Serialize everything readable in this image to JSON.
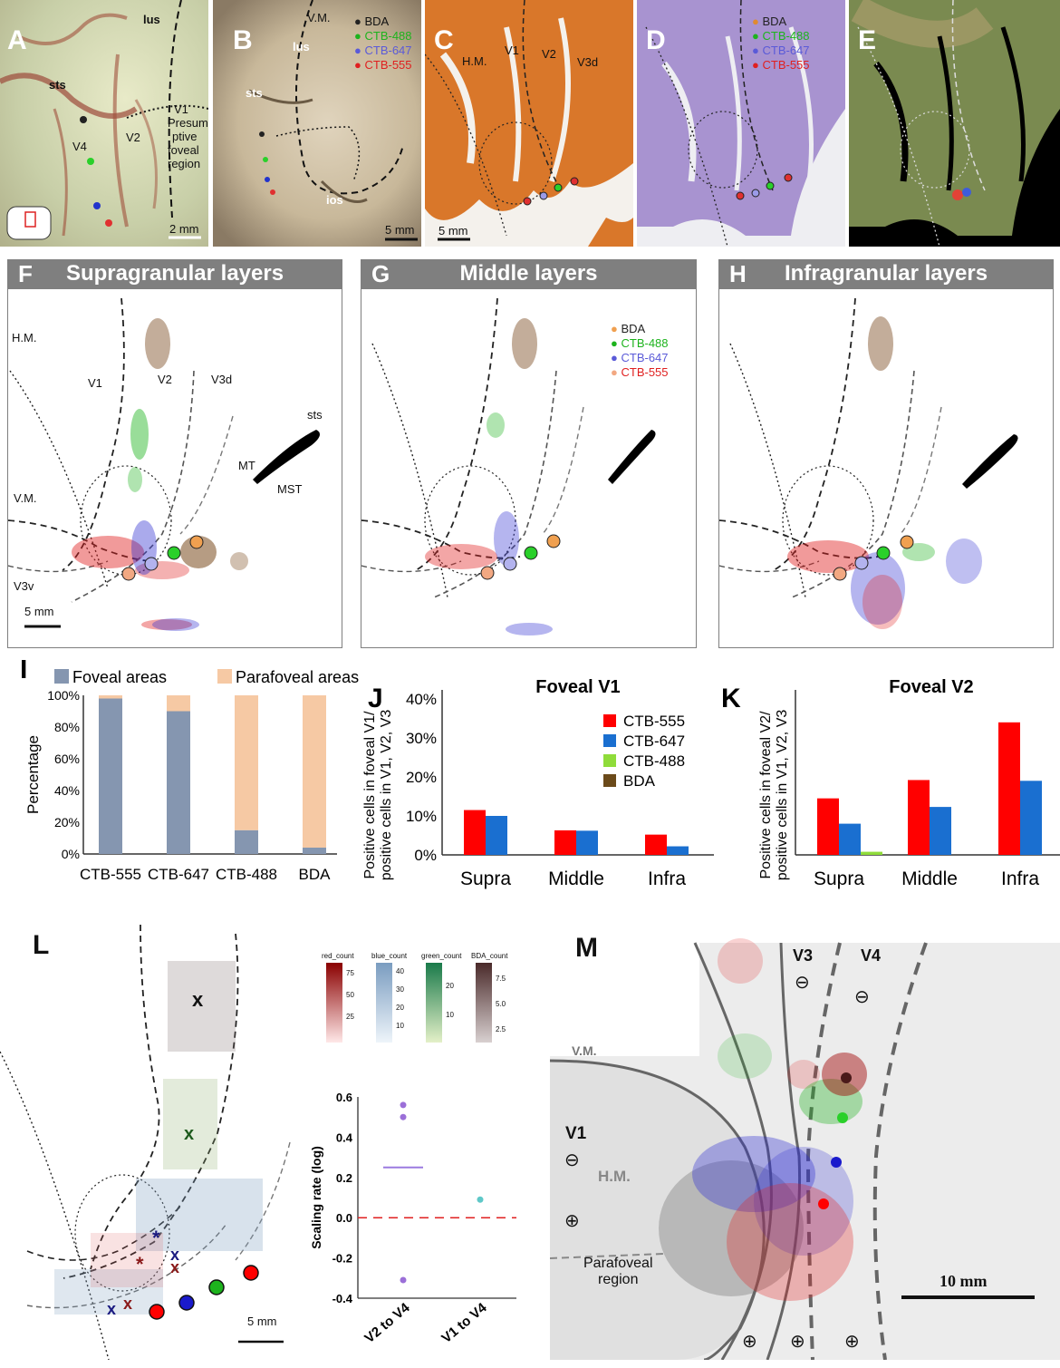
{
  "panels": {
    "A": {
      "letter": "A",
      "labels": {
        "lus": "lus",
        "sts": "sts",
        "v4": "V4",
        "v2": "V2",
        "v1": "V1",
        "presumptive": "Presum-",
        "presumptive2": "ptive",
        "foveal": "foveal",
        "region": "region"
      },
      "scale": "2 mm"
    },
    "B": {
      "letter": "B",
      "labels": {
        "vm": "V.M.",
        "lus": "lus",
        "sts": "sts",
        "ios": "ios"
      },
      "scale": "5 mm",
      "legend": [
        "BDA",
        "CTB-488",
        "CTB-647",
        "CTB-555"
      ]
    },
    "C": {
      "letter": "C",
      "labels": {
        "hm": "H.M.",
        "v1": "V1",
        "v2": "V2",
        "v3d": "V3d"
      },
      "scale": "5 mm"
    },
    "D": {
      "letter": "D",
      "legend": [
        "BDA",
        "CTB-488",
        "CTB-647",
        "CTB-555"
      ]
    },
    "E": {
      "letter": "E"
    },
    "F": {
      "letter": "F",
      "title": "Supragranular layers",
      "labels": {
        "hm": "H.M.",
        "v1": "V1",
        "v2": "V2",
        "v3d": "V3d",
        "sts": "sts",
        "mt": "MT",
        "mst": "MST",
        "vm": "V.M.",
        "v3v": "V3v"
      },
      "scale": "5 mm"
    },
    "G": {
      "letter": "G",
      "title": "Middle layers",
      "legend": [
        "BDA",
        "CTB-488",
        "CTB-647",
        "CTB-555"
      ]
    },
    "H": {
      "letter": "H",
      "title": "Infragranular layers"
    },
    "L": {
      "letter": "L",
      "scale": "5 mm",
      "colorbars": [
        {
          "name": "red_count",
          "ticks": [
            "75",
            "50",
            "25"
          ]
        },
        {
          "name": "blue_count",
          "ticks": [
            "40",
            "30",
            "20",
            "10"
          ]
        },
        {
          "name": "green_count",
          "ticks": [
            "20",
            "10"
          ]
        },
        {
          "name": "BDA_count",
          "ticks": [
            "7.5",
            "5.0",
            "2.5"
          ]
        }
      ]
    },
    "M": {
      "letter": "M",
      "labels": {
        "v3": "V3",
        "v4": "V4",
        "vm": "V.M.",
        "v1": "V1",
        "hm": "H.M.",
        "parafoveal": "Parafoveal",
        "region": "region",
        "minus": "⊖",
        "plus": "⊕"
      },
      "scale": "10 mm"
    }
  },
  "colors": {
    "bda": "#7a4a1e",
    "ctb488": "#1db31d",
    "ctb647": "#2a2ad0",
    "ctb555": "#e02020",
    "foveal": "#8596b0",
    "parafoveal": "#f6c9a4",
    "j555": "#ff0000",
    "j647": "#1a6fd0",
    "j488": "#8fdc3a",
    "jbda": "#6b4a1a"
  },
  "chart_data": [
    {
      "id": "I",
      "type": "bar",
      "stacked": true,
      "title": "",
      "legend": [
        "Foveal areas",
        "Parafoveal areas"
      ],
      "categories": [
        "CTB-555",
        "CTB-647",
        "CTB-488",
        "BDA"
      ],
      "series": [
        {
          "name": "Foveal areas",
          "values": [
            98,
            90,
            15,
            4
          ]
        },
        {
          "name": "Parafoveal areas",
          "values": [
            2,
            10,
            85,
            96
          ]
        }
      ],
      "ylabel": "Percentage",
      "ylim": [
        0,
        100
      ],
      "yticks": [
        "0%",
        "20%",
        "40%",
        "60%",
        "80%",
        "100%"
      ]
    },
    {
      "id": "J",
      "type": "bar",
      "title": "Foveal V1",
      "categories": [
        "Supra",
        "Middle",
        "Infra"
      ],
      "series": [
        {
          "name": "CTB-555",
          "values": [
            11.5,
            6.3,
            5.2
          ]
        },
        {
          "name": "CTB-647",
          "values": [
            10,
            6.2,
            2.2
          ]
        },
        {
          "name": "CTB-488",
          "values": [
            0,
            0,
            0
          ]
        },
        {
          "name": "BDA",
          "values": [
            0,
            0,
            0
          ]
        }
      ],
      "ylabel": "Positive cells in foveal V1/ positive cells in V1, V2, V3",
      "ylabel1": "Positive cells in foveal V1/",
      "ylabel2": "positive cells in V1, V2, V3",
      "ylim": [
        0,
        40
      ],
      "yticks": [
        "0%",
        "10%",
        "20%",
        "30%",
        "40%"
      ]
    },
    {
      "id": "K",
      "type": "bar",
      "title": "Foveal V2",
      "categories": [
        "Supra",
        "Middle",
        "Infra"
      ],
      "series": [
        {
          "name": "CTB-555",
          "values": [
            14.5,
            19.2,
            34
          ]
        },
        {
          "name": "CTB-647",
          "values": [
            8,
            12.3,
            19
          ]
        },
        {
          "name": "CTB-488",
          "values": [
            0.8,
            0,
            0
          ]
        },
        {
          "name": "BDA",
          "values": [
            0,
            0,
            0
          ]
        }
      ],
      "ylabel": "Positive cells in foveal V2/ positive cells in V1, V2, V3",
      "ylabel1": "Positive cells in foveal V2/",
      "ylabel2": "positive cells in V1, V2, V3",
      "ylim": [
        0,
        40
      ]
    },
    {
      "id": "L-scaling",
      "type": "scatter",
      "categories": [
        "V2 to V4",
        "V1 to V4"
      ],
      "points": [
        {
          "x": "V2 to V4",
          "y": 0.56
        },
        {
          "x": "V2 to V4",
          "y": 0.5
        },
        {
          "x": "V2 to V4",
          "y": -0.31
        },
        {
          "x": "V1 to V4",
          "y": 0.09
        }
      ],
      "means": [
        {
          "x": "V2 to V4",
          "y": 0.25
        }
      ],
      "reference": 0,
      "ylabel": "Scaling rate (log)",
      "ylim": [
        -0.4,
        0.6
      ],
      "yticks": [
        "0.6",
        "0.4",
        "0.2",
        "0.0",
        "-0.2",
        "-0.4"
      ]
    }
  ]
}
